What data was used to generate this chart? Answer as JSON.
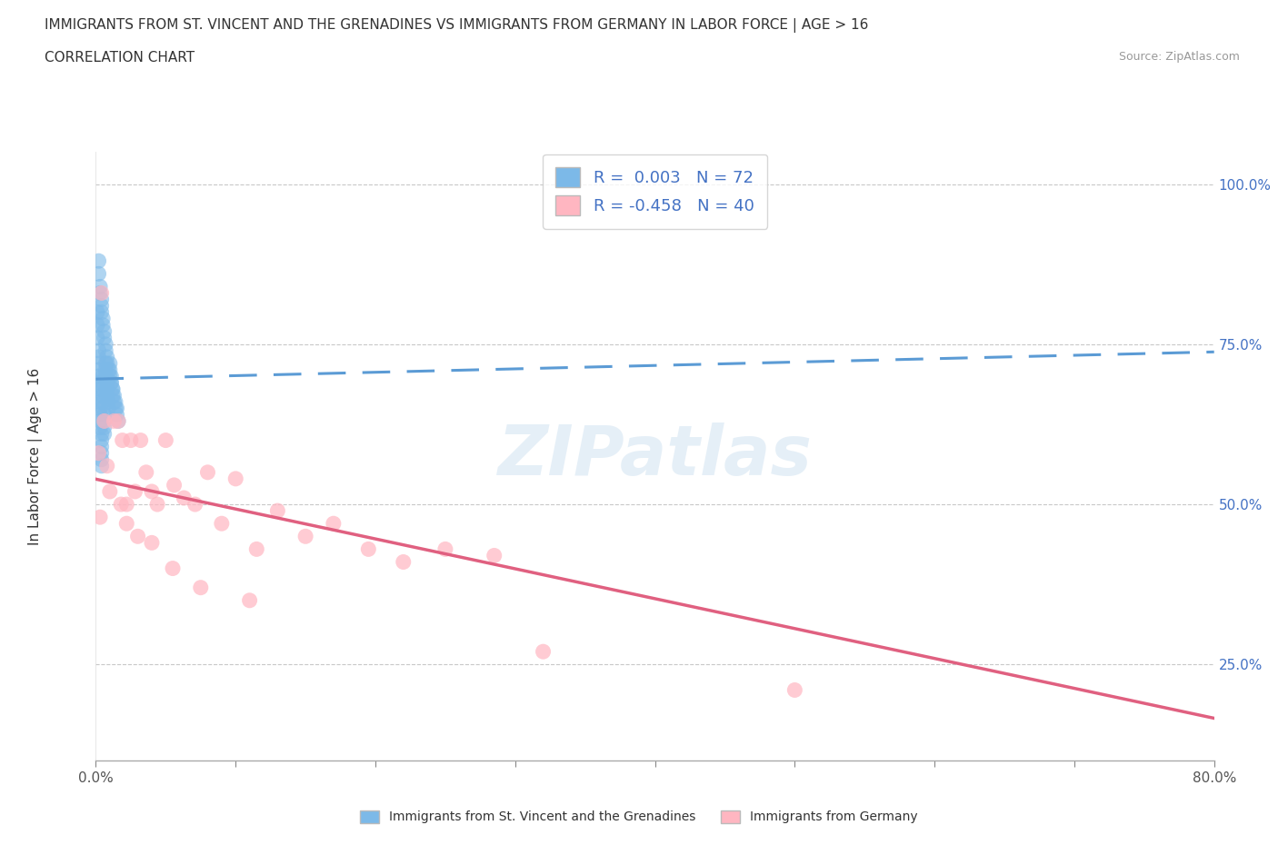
{
  "title": "IMMIGRANTS FROM ST. VINCENT AND THE GRENADINES VS IMMIGRANTS FROM GERMANY IN LABOR FORCE | AGE > 16",
  "subtitle": "CORRELATION CHART",
  "source": "Source: ZipAtlas.com",
  "ylabel": "In Labor Force | Age > 16",
  "xlim": [
    0.0,
    0.8
  ],
  "ylim": [
    0.1,
    1.05
  ],
  "ytick_positions": [
    0.25,
    0.5,
    0.75,
    1.0
  ],
  "ytick_labels": [
    "25.0%",
    "50.0%",
    "75.0%",
    "100.0%"
  ],
  "watermark": "ZIPatlas",
  "series1_color": "#7cb9e8",
  "series1_trend_color": "#5b9bd5",
  "series2_color": "#ffb6c1",
  "series2_trend_color": "#e06080",
  "series1_R": 0.003,
  "series1_N": 72,
  "series2_R": -0.458,
  "series2_N": 40,
  "legend1_label": "Immigrants from St. Vincent and the Grenadines",
  "legend2_label": "Immigrants from Germany",
  "series1_x": [
    0.001,
    0.001,
    0.001,
    0.002,
    0.002,
    0.002,
    0.002,
    0.002,
    0.003,
    0.003,
    0.003,
    0.003,
    0.003,
    0.003,
    0.003,
    0.003,
    0.004,
    0.004,
    0.004,
    0.004,
    0.004,
    0.004,
    0.005,
    0.005,
    0.005,
    0.005,
    0.005,
    0.005,
    0.006,
    0.006,
    0.006,
    0.006,
    0.007,
    0.007,
    0.007,
    0.008,
    0.008,
    0.008,
    0.009,
    0.009,
    0.01,
    0.01,
    0.011,
    0.011,
    0.012,
    0.012,
    0.013,
    0.014,
    0.015,
    0.016,
    0.002,
    0.002,
    0.003,
    0.003,
    0.004,
    0.004,
    0.004,
    0.005,
    0.005,
    0.006,
    0.006,
    0.007,
    0.007,
    0.008,
    0.008,
    0.009,
    0.01,
    0.011,
    0.012,
    0.013,
    0.014,
    0.015
  ],
  "series1_y": [
    0.8,
    0.78,
    0.76,
    0.74,
    0.73,
    0.72,
    0.71,
    0.7,
    0.69,
    0.68,
    0.67,
    0.66,
    0.65,
    0.64,
    0.63,
    0.62,
    0.61,
    0.6,
    0.59,
    0.58,
    0.57,
    0.56,
    0.7,
    0.69,
    0.68,
    0.67,
    0.66,
    0.65,
    0.64,
    0.63,
    0.62,
    0.61,
    0.72,
    0.71,
    0.7,
    0.69,
    0.68,
    0.67,
    0.66,
    0.65,
    0.72,
    0.71,
    0.7,
    0.69,
    0.68,
    0.67,
    0.66,
    0.65,
    0.64,
    0.63,
    0.88,
    0.86,
    0.84,
    0.83,
    0.82,
    0.81,
    0.8,
    0.79,
    0.78,
    0.77,
    0.76,
    0.75,
    0.74,
    0.73,
    0.72,
    0.71,
    0.7,
    0.69,
    0.68,
    0.67,
    0.66,
    0.65
  ],
  "series2_x": [
    0.002,
    0.004,
    0.006,
    0.008,
    0.01,
    0.013,
    0.016,
    0.019,
    0.022,
    0.025,
    0.028,
    0.032,
    0.036,
    0.04,
    0.044,
    0.05,
    0.056,
    0.063,
    0.071,
    0.08,
    0.09,
    0.1,
    0.115,
    0.13,
    0.15,
    0.17,
    0.195,
    0.22,
    0.25,
    0.285,
    0.003,
    0.018,
    0.022,
    0.03,
    0.04,
    0.055,
    0.075,
    0.11,
    0.32,
    0.5
  ],
  "series2_y": [
    0.58,
    0.83,
    0.63,
    0.56,
    0.52,
    0.63,
    0.63,
    0.6,
    0.5,
    0.6,
    0.52,
    0.6,
    0.55,
    0.52,
    0.5,
    0.6,
    0.53,
    0.51,
    0.5,
    0.55,
    0.47,
    0.54,
    0.43,
    0.49,
    0.45,
    0.47,
    0.43,
    0.41,
    0.43,
    0.42,
    0.48,
    0.5,
    0.47,
    0.45,
    0.44,
    0.4,
    0.37,
    0.35,
    0.27,
    0.21
  ]
}
